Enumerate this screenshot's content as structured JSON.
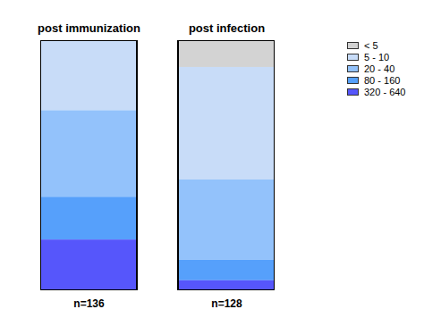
{
  "chart_data": {
    "type": "bar",
    "stacked": true,
    "categories": [
      "post immunization",
      "post infection"
    ],
    "annotations": [
      "n=136",
      "n=128"
    ],
    "series": [
      {
        "name": "< 5",
        "color": "#d3d3d3",
        "values": [
          0,
          10.7
        ]
      },
      {
        "name": "5 - 10",
        "color": "#c8dcf8",
        "values": [
          28.0,
          45.0
        ]
      },
      {
        "name": "20 - 40",
        "color": "#93c2fb",
        "values": [
          34.6,
          32.1
        ]
      },
      {
        "name": "80 - 160",
        "color": "#56a0fb",
        "values": [
          17.1,
          8.2
        ]
      },
      {
        "name": "320 - 640",
        "color": "#5656fb",
        "values": [
          20.3,
          4.0
        ]
      }
    ],
    "ylim": [
      0,
      100
    ],
    "tick_labels": "x",
    "legend": "top-right"
  }
}
